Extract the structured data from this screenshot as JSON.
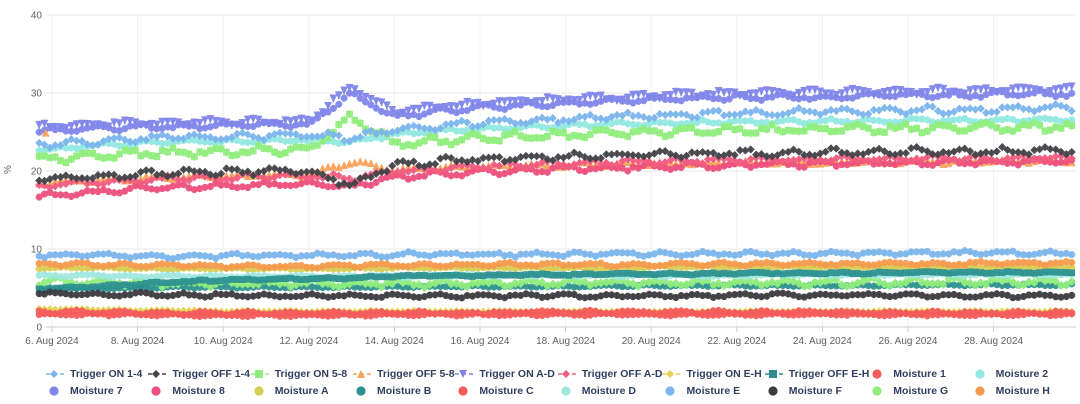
{
  "chart_data": {
    "type": "line",
    "title": "",
    "ylabel": "%",
    "ylim": [
      0,
      40
    ],
    "yticks": [
      0,
      10,
      20,
      30,
      40
    ],
    "xticks": [
      {
        "label": "6. Aug 2024",
        "day": 0
      },
      {
        "label": "8. Aug 2024",
        "day": 2
      },
      {
        "label": "10. Aug 2024",
        "day": 4
      },
      {
        "label": "12. Aug 2024",
        "day": 6
      },
      {
        "label": "14. Aug 2024",
        "day": 8
      },
      {
        "label": "16. Aug 2024",
        "day": 10
      },
      {
        "label": "18. Aug 2024",
        "day": 12
      },
      {
        "label": "20. Aug 2024",
        "day": 14
      },
      {
        "label": "22. Aug 2024",
        "day": 16
      },
      {
        "label": "24. Aug 2024",
        "day": 18
      },
      {
        "label": "26. Aug 2024",
        "day": 20
      },
      {
        "label": "28. Aug 2024",
        "day": 22
      }
    ],
    "x_start_day": -0.3,
    "x_end_day": 23.9,
    "anchor_days_note": "values arrays are daily anchors from 6 Aug 2024 to 29 Aug 2024",
    "legend_position": "bottom",
    "grid": {
      "horizontal": true,
      "vertical": true
    },
    "axis_colors": {
      "grid": "#e9e9e9",
      "vgrid": "#f2f2f2",
      "axis_line": "#cccccc",
      "tick": "#cccccc",
      "label": "#606060"
    },
    "legend_rows": [
      [
        "Trigger ON 1-4",
        "Trigger OFF 1-4",
        "Trigger ON 5-8",
        "Trigger OFF 5-8",
        "Trigger ON A-D",
        "Trigger OFF A-D",
        "Trigger ON E-H",
        "Trigger OFF E-H",
        "Moisture 1",
        "Moisture 2"
      ],
      [
        "Moisture 7",
        "Moisture 8",
        "Moisture A",
        "Moisture B",
        "Moisture C",
        "Moisture D",
        "Moisture E",
        "Moisture F",
        "Moisture G",
        "Moisture H"
      ]
    ],
    "series": [
      {
        "name": "Moisture A",
        "color": "#d8cc52",
        "marker": "circle",
        "wiggle": 0.15,
        "stem": 0.15,
        "values": [
          7.6,
          7.6,
          7.5,
          7.5,
          7.5,
          7.5,
          7.5,
          7.5,
          7.6,
          7.6,
          7.6,
          7.6,
          7.6,
          7.6,
          7.7,
          7.7,
          7.7,
          7.7,
          7.7,
          7.7,
          7.7,
          7.7,
          7.7,
          7.7
        ]
      },
      {
        "name": "Moisture B",
        "color": "#2b908f",
        "marker": "circle",
        "wiggle": 0.15,
        "stem": 0.15,
        "values": [
          5.0,
          5.0,
          5.0,
          5.1,
          5.1,
          5.1,
          5.1,
          5.1,
          5.2,
          5.2,
          5.2,
          5.2,
          5.2,
          5.3,
          5.3,
          5.3,
          5.3,
          5.3,
          5.3,
          5.3,
          5.4,
          5.4,
          5.4,
          5.4
        ]
      },
      {
        "name": "Trigger ON E-H",
        "color": "#e4d354",
        "marker": "diamond",
        "wiggle": 0.1,
        "stem": 0.15,
        "values": [
          2.3,
          2.2,
          2.1,
          2.1,
          2.0,
          2.0,
          2.0,
          2.0,
          2.0,
          2.0,
          2.0,
          2.0,
          2.0,
          2.0,
          2.0,
          2.0,
          2.0,
          2.0,
          2.0,
          2.0,
          2.0,
          2.0,
          2.0,
          2.0
        ]
      },
      {
        "name": "Moisture G",
        "color": "#90ed7d",
        "marker": "circle",
        "wiggle": 0.6,
        "stem": 0.55,
        "values": [
          5.8,
          5.7,
          5.7,
          5.6,
          5.6,
          5.6,
          5.6,
          5.6,
          5.6,
          5.6,
          5.6,
          5.6,
          5.7,
          5.7,
          5.7,
          5.7,
          5.7,
          5.7,
          5.7,
          5.8,
          5.8,
          5.8,
          5.8,
          5.8
        ]
      },
      {
        "name": "Moisture D",
        "color": "#9fe7df",
        "marker": "circle",
        "wiggle": 0.2,
        "stem": 0.2,
        "values": [
          6.6,
          6.6,
          6.5,
          6.5,
          6.5,
          6.5,
          6.5,
          6.5,
          6.5,
          6.6,
          6.6,
          6.6,
          6.6,
          6.6,
          6.6,
          6.6,
          6.6,
          6.7,
          6.7,
          6.7,
          6.7,
          6.7,
          6.7,
          6.7
        ]
      },
      {
        "name": "Trigger OFF E-H",
        "color": "#2b908f",
        "marker": "square",
        "wiggle": 0.15,
        "stem": 0.15,
        "values": [
          4.9,
          5.2,
          5.5,
          5.8,
          6.0,
          6.1,
          6.2,
          6.3,
          6.5,
          6.6,
          6.6,
          6.7,
          6.7,
          6.8,
          6.8,
          6.8,
          6.9,
          6.9,
          6.9,
          6.9,
          7.0,
          7.0,
          7.0,
          7.0
        ]
      },
      {
        "name": "Moisture F",
        "color": "#3b3b40",
        "marker": "circle",
        "wiggle": 0.3,
        "stem": 0.35,
        "values": [
          4.3,
          4.2,
          4.2,
          4.1,
          4.1,
          4.0,
          4.0,
          4.0,
          4.0,
          4.0,
          4.0,
          4.0,
          4.0,
          4.0,
          4.0,
          4.0,
          4.1,
          4.1,
          4.1,
          4.1,
          4.1,
          4.0,
          4.0,
          4.0
        ]
      },
      {
        "name": "Moisture H",
        "color": "#f59a4e",
        "marker": "circle",
        "wiggle": 0.3,
        "stem": 0.3,
        "values": [
          8.1,
          8.0,
          7.9,
          7.9,
          7.8,
          7.8,
          7.8,
          7.9,
          7.9,
          7.9,
          8.0,
          8.0,
          8.0,
          8.0,
          8.0,
          8.1,
          8.1,
          8.1,
          8.1,
          8.1,
          8.1,
          8.1,
          8.2,
          8.2
        ]
      },
      {
        "name": "Moisture E",
        "color": "#7cb5ec",
        "marker": "circle",
        "wiggle": 0.35,
        "stem": 0.3,
        "values": [
          9.2,
          9.2,
          9.1,
          9.1,
          9.1,
          9.2,
          9.2,
          9.2,
          9.3,
          9.3,
          9.3,
          9.3,
          9.3,
          9.4,
          9.4,
          9.4,
          9.4,
          9.4,
          9.4,
          9.5,
          9.5,
          9.5,
          9.5,
          9.5
        ]
      },
      {
        "name": "Moisture C",
        "color": "#f45b5b",
        "marker": "circle",
        "wiggle": 0.2,
        "stem": 0.25,
        "values": [
          1.6,
          1.6,
          1.6,
          1.5,
          1.5,
          1.5,
          1.5,
          1.5,
          1.6,
          1.6,
          1.6,
          1.6,
          1.6,
          1.6,
          1.6,
          1.6,
          1.6,
          1.6,
          1.6,
          1.6,
          1.6,
          1.6,
          1.6,
          1.6
        ]
      },
      {
        "name": "Moisture 1",
        "color": "#f45b5b",
        "marker": "circle",
        "wiggle": 0.25,
        "stem": 0.35,
        "values": [
          1.9,
          1.9,
          1.8,
          1.8,
          1.8,
          1.8,
          1.8,
          1.8,
          1.8,
          1.8,
          1.8,
          1.9,
          1.9,
          1.9,
          1.9,
          1.9,
          1.9,
          1.9,
          1.9,
          1.8,
          1.8,
          1.8,
          1.8,
          1.8
        ]
      },
      {
        "name": "Moisture 2",
        "color": "#91e8e1",
        "marker": "circle",
        "wiggle": 0.35,
        "stem": 0.3,
        "values": [
          22.8,
          23.2,
          23.5,
          23.7,
          23.8,
          23.9,
          24.0,
          23.8,
          24.7,
          25.1,
          25.4,
          25.6,
          25.8,
          26.0,
          26.1,
          26.2,
          26.3,
          26.3,
          26.4,
          26.4,
          26.5,
          26.5,
          26.5,
          26.6
        ]
      },
      {
        "name": "Trigger ON 5-8",
        "color": "#90ed7d",
        "marker": "square",
        "wiggle": 0.7,
        "stem": 0.5,
        "values": [
          21.6,
          22.0,
          22.2,
          22.4,
          22.5,
          22.6,
          22.7,
          27.0,
          23.6,
          23.9,
          24.2,
          24.4,
          24.6,
          24.8,
          25.0,
          25.1,
          25.2,
          25.3,
          25.4,
          25.4,
          25.5,
          25.5,
          25.6,
          25.7
        ]
      },
      {
        "name": "Trigger ON 1-4",
        "color": "#7cb5ec",
        "marker": "diamond",
        "wiggle": 0.6,
        "stem": 0.45,
        "values": [
          23.4,
          23.8,
          24.1,
          24.3,
          24.4,
          24.5,
          24.6,
          24.2,
          25.2,
          25.8,
          26.2,
          26.5,
          26.7,
          26.9,
          27.1,
          27.3,
          27.4,
          27.5,
          27.6,
          27.7,
          27.8,
          27.8,
          27.9,
          28.0
        ]
      },
      {
        "name": "Moisture 7",
        "color": "#8085e9",
        "marker": "circle",
        "wiggle": 0.45,
        "stem": 0.3,
        "values": [
          25.2,
          25.5,
          25.6,
          25.7,
          25.8,
          25.9,
          25.9,
          29.9,
          27.0,
          27.6,
          28.1,
          28.4,
          28.7,
          28.9,
          29.1,
          29.3,
          29.4,
          29.5,
          29.5,
          29.6,
          29.7,
          29.7,
          29.8,
          29.9
        ]
      },
      {
        "name": "Trigger ON A-D",
        "color": "#8085e9",
        "marker": "tack",
        "wiggle": 0.5,
        "stem": 0.5,
        "values": [
          25.7,
          26.0,
          26.1,
          26.2,
          26.3,
          26.4,
          26.4,
          30.8,
          27.6,
          28.2,
          28.7,
          29.0,
          29.2,
          29.4,
          29.7,
          29.9,
          30.0,
          30.0,
          30.1,
          30.2,
          30.2,
          30.3,
          30.4,
          30.5
        ]
      },
      {
        "name": "Trigger OFF 5-8",
        "color": "#f7a35c",
        "marker": "triangle",
        "wiggle": 0.35,
        "stem": 0.3,
        "outliers": [
          [
            -0.15,
            24.9
          ]
        ],
        "values": [
          18.6,
          18.9,
          19.1,
          19.3,
          19.4,
          19.5,
          19.6,
          21.2,
          20.2,
          20.4,
          20.6,
          20.7,
          20.8,
          20.9,
          21.0,
          21.0,
          21.1,
          21.1,
          21.1,
          21.2,
          21.2,
          21.2,
          21.3,
          21.3
        ]
      },
      {
        "name": "Moisture 8",
        "color": "#ed4f7d",
        "marker": "circle",
        "wiggle": 0.5,
        "stem": 0.35,
        "values": [
          16.8,
          17.3,
          17.7,
          17.9,
          18.1,
          18.2,
          18.3,
          18.0,
          19.2,
          19.6,
          19.9,
          20.1,
          20.3,
          20.4,
          20.6,
          20.7,
          20.8,
          20.9,
          20.9,
          21.0,
          21.0,
          21.1,
          21.1,
          21.2
        ]
      },
      {
        "name": "Trigger OFF A-D",
        "color": "#f15c80",
        "marker": "diamond",
        "wiggle": 0.5,
        "stem": 0.4,
        "values": [
          18.2,
          18.6,
          18.9,
          19.1,
          19.2,
          19.3,
          19.4,
          19.0,
          20.0,
          20.3,
          20.6,
          20.8,
          21.0,
          21.1,
          21.2,
          21.3,
          21.4,
          21.4,
          21.5,
          21.5,
          21.6,
          21.6,
          21.6,
          21.7
        ]
      },
      {
        "name": "Trigger OFF 1-4",
        "color": "#434348",
        "marker": "diamond",
        "wiggle": 0.6,
        "stem": 0.35,
        "values": [
          18.9,
          19.3,
          19.6,
          19.8,
          19.9,
          20.0,
          20.1,
          18.1,
          20.8,
          21.2,
          21.5,
          21.7,
          21.9,
          22.0,
          22.1,
          22.2,
          22.3,
          22.3,
          22.4,
          22.4,
          22.5,
          22.5,
          22.5,
          22.6
        ]
      }
    ]
  }
}
